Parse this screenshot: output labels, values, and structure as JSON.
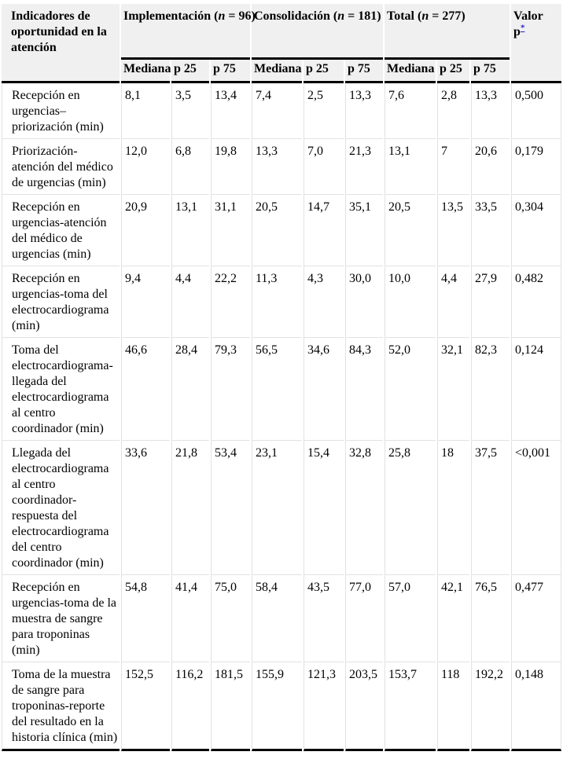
{
  "colors": {
    "header_background": "#f0f0f0",
    "heavy_rule": "#000000",
    "light_grid": "#e2e2e2",
    "footnote_link": "#2222cc"
  },
  "table": {
    "header": {
      "col0": "Indicadores de oportunidad en la atención",
      "groups": [
        {
          "prefix": "Implementación (",
          "n": "n",
          "suffix": " = 96)"
        },
        {
          "prefix": "Consolidación (",
          "n": "n",
          "suffix": " = 181)"
        },
        {
          "prefix": "Total (",
          "n": "n",
          "suffix": " = 277)"
        }
      ],
      "subheaders": [
        "Mediana",
        "p 25",
        "p 75"
      ],
      "p_column": {
        "line1": "Valor",
        "line2": "p",
        "footnote_symbol": "*"
      }
    },
    "rows": [
      {
        "label": "Recepción en urgencias–priorización (min)",
        "implementacion": [
          "8,1",
          "3,5",
          "13,4"
        ],
        "consolidacion": [
          "7,4",
          "2,5",
          "13,3"
        ],
        "total": [
          "7,6",
          "2,8",
          "13,3"
        ],
        "valor_p": "0,500"
      },
      {
        "label": "Priorización-atención del médico de urgencias (min)",
        "implementacion": [
          "12,0",
          "6,8",
          "19,8"
        ],
        "consolidacion": [
          "13,3",
          "7,0",
          "21,3"
        ],
        "total": [
          "13,1",
          "7",
          "20,6"
        ],
        "valor_p": "0,179"
      },
      {
        "label": "Recepción en urgencias-atención del médico de urgencias (min)",
        "implementacion": [
          "20,9",
          "13,1",
          "31,1"
        ],
        "consolidacion": [
          "20,5",
          "14,7",
          "35,1"
        ],
        "total": [
          "20,5",
          "13,5",
          "33,5"
        ],
        "valor_p": "0,304"
      },
      {
        "label": "Recepción en urgencias-toma del electrocardiograma (min)",
        "implementacion": [
          "9,4",
          "4,4",
          "22,2"
        ],
        "consolidacion": [
          "11,3",
          "4,3",
          "30,0"
        ],
        "total": [
          "10,0",
          "4,4",
          "27,9"
        ],
        "valor_p": "0,482"
      },
      {
        "label": "Toma del electrocardiograma-llegada del electrocardiograma al centro coordinador (min)",
        "implementacion": [
          "46,6",
          "28,4",
          "79,3"
        ],
        "consolidacion": [
          "56,5",
          "34,6",
          "84,3"
        ],
        "total": [
          "52,0",
          "32,1",
          "82,3"
        ],
        "valor_p": "0,124"
      },
      {
        "label": "Llegada del electrocardiograma al centro coordinador-respuesta del electrocardiograma del centro coordinador (min)",
        "implementacion": [
          "33,6",
          "21,8",
          "53,4"
        ],
        "consolidacion": [
          "23,1",
          "15,4",
          "32,8"
        ],
        "total": [
          "25,8",
          "18",
          "37,5"
        ],
        "valor_p": "<0,001"
      },
      {
        "label": "Recepción en urgencias-toma de la muestra de sangre para troponinas (min)",
        "implementacion": [
          "54,8",
          "41,4",
          "75,0"
        ],
        "consolidacion": [
          "58,4",
          "43,5",
          "77,0"
        ],
        "total": [
          "57,0",
          "42,1",
          "76,5"
        ],
        "valor_p": "0,477"
      },
      {
        "label": "Toma de la muestra de sangre para troponinas-reporte del resultado en la historia clínica (min)",
        "implementacion": [
          "152,5",
          "116,2",
          "181,5"
        ],
        "consolidacion": [
          "155,9",
          "121,3",
          "203,5"
        ],
        "total": [
          "153,7",
          "118",
          "192,2"
        ],
        "valor_p": "0,148"
      }
    ]
  }
}
